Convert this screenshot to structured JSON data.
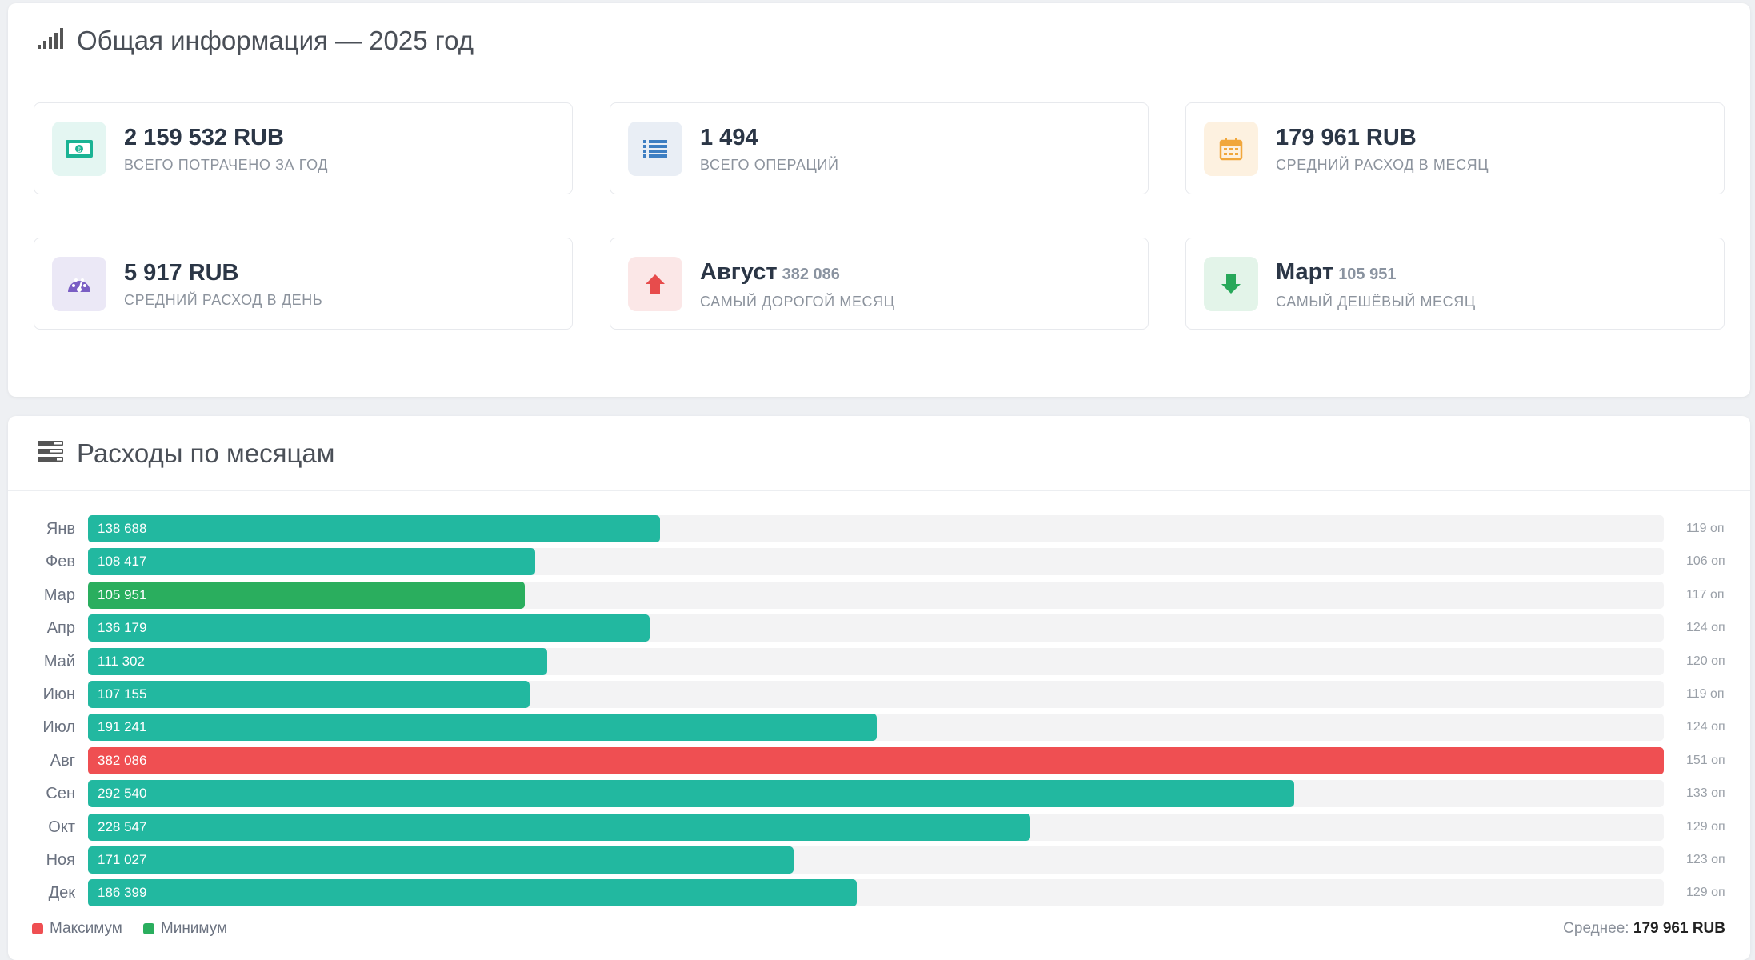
{
  "overview": {
    "title": "Общая информация — 2025 год",
    "icon": "bar-signal-icon",
    "stats": [
      {
        "id": "total",
        "icon": "money-icon",
        "value": "2 159 532 RUB",
        "label": "ВСЕГО ПОТРАЧЕНО ЗА ГОД",
        "color": "#1ab394",
        "bg": "#e4f6f2"
      },
      {
        "id": "ops",
        "icon": "list-icon",
        "value": "1 494",
        "label": "ВСЕГО ОПЕРАЦИЙ",
        "color": "#3d7ec2",
        "bg": "#e9eef5"
      },
      {
        "id": "avg-month",
        "icon": "calendar-icon",
        "value": "179 961 RUB",
        "label": "СРЕДНИЙ РАСХОД В МЕСЯЦ",
        "color": "#f1a73c",
        "bg": "#fdf1e0"
      },
      {
        "id": "avg-day",
        "icon": "speedometer-icon",
        "value": "5 917 RUB",
        "label": "СРЕДНИЙ РАСХОД В ДЕНЬ",
        "color": "#7a5ec4",
        "bg": "#ebe8f6"
      },
      {
        "id": "max-month",
        "icon": "arrow-up-icon",
        "value": "Август",
        "sub": "382 086",
        "label": "САМЫЙ ДОРОГОЙ МЕСЯЦ",
        "color": "#e74c4c",
        "bg": "#fbe7e7"
      },
      {
        "id": "min-month",
        "icon": "arrow-down-icon",
        "value": "Март",
        "sub": "105 951",
        "label": "САМЫЙ ДЕШЁВЫЙ МЕСЯЦ",
        "color": "#28a85a",
        "bg": "#e3f4e9"
      }
    ]
  },
  "monthly": {
    "title": "Расходы по месяцам",
    "icon": "stacked-rows-icon",
    "colors": {
      "normal": "#22b8a0",
      "max": "#ef4f52",
      "min": "#2aae5e",
      "track": "#f3f3f4"
    },
    "legend": {
      "max": "Максимум",
      "min": "Минимум"
    },
    "average_label": "Среднее:",
    "average_value": "179 961 RUB"
  },
  "chart_data": {
    "type": "bar",
    "orientation": "horizontal",
    "categories": [
      "Янв",
      "Фев",
      "Мар",
      "Апр",
      "Май",
      "Июн",
      "Июл",
      "Авг",
      "Сен",
      "Окт",
      "Ноя",
      "Дек"
    ],
    "values": [
      138688,
      108417,
      105951,
      136179,
      111302,
      107155,
      191241,
      382086,
      292540,
      228547,
      171027,
      186399
    ],
    "value_labels": [
      "138 688",
      "108 417",
      "105 951",
      "136 179",
      "111 302",
      "107 155",
      "191 241",
      "382 086",
      "292 540",
      "228 547",
      "171 027",
      "186 399"
    ],
    "ops_labels": [
      "119 оп",
      "106 оп",
      "117 оп",
      "124 оп",
      "120 оп",
      "119 оп",
      "124 оп",
      "151 оп",
      "133 оп",
      "129 оп",
      "123 оп",
      "129 оп"
    ],
    "max_index": 7,
    "min_index": 2,
    "xlim": [
      0,
      382086
    ]
  }
}
